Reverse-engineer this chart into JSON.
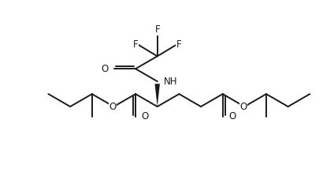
{
  "background_color": "#ffffff",
  "line_color": "#1a1a1a",
  "line_width": 1.4,
  "font_size": 8.5,
  "figsize": [
    4.24,
    2.18
  ],
  "dpi": 100,
  "xlim": [
    -2.8,
    3.2
  ],
  "ylim": [
    -1.35,
    2.2
  ]
}
